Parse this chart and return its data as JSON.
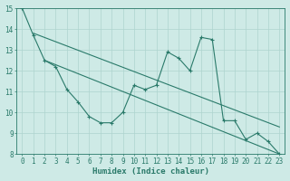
{
  "line1_x": [
    0,
    1,
    2,
    3,
    4,
    5,
    6,
    7,
    8,
    9,
    10,
    11,
    12,
    13,
    14,
    15,
    16,
    17,
    18,
    19,
    20,
    21,
    22,
    23
  ],
  "line1_y": [
    15.0,
    13.7,
    12.5,
    12.2,
    11.1,
    10.5,
    9.8,
    9.5,
    9.5,
    10.0,
    11.3,
    11.1,
    11.3,
    12.9,
    12.6,
    12.0,
    13.6,
    13.5,
    9.6,
    9.6,
    8.7,
    9.0,
    8.6,
    8.0
  ],
  "line2_x": [
    1,
    23
  ],
  "line2_y": [
    13.8,
    9.3
  ],
  "line3_x": [
    2,
    23
  ],
  "line3_y": [
    12.5,
    8.0
  ],
  "line_color": "#2a7a6a",
  "bg_color": "#ceeae6",
  "grid_color": "#aed4cf",
  "xlabel": "Humidex (Indice chaleur)",
  "ylim": [
    8,
    15
  ],
  "xlim": [
    -0.5,
    23.5
  ],
  "yticks": [
    8,
    9,
    10,
    11,
    12,
    13,
    14,
    15
  ],
  "xticks": [
    0,
    1,
    2,
    3,
    4,
    5,
    6,
    7,
    8,
    9,
    10,
    11,
    12,
    13,
    14,
    15,
    16,
    17,
    18,
    19,
    20,
    21,
    22,
    23
  ],
  "tick_fontsize": 5.5,
  "xlabel_fontsize": 6.5
}
